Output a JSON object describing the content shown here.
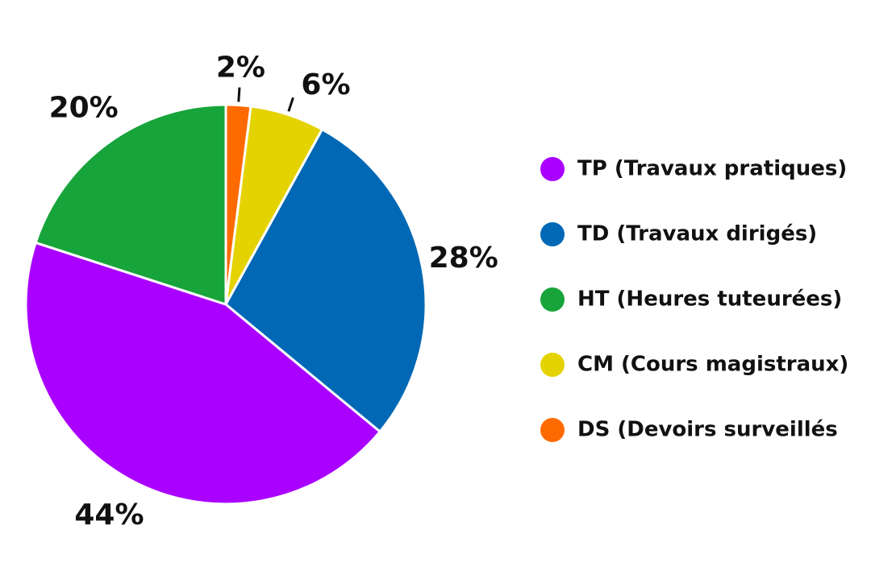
{
  "chart_data": {
    "type": "pie",
    "categories": [
      "DS (Devoirs surveillés",
      "CM (Cours magistraux)",
      "TD (Travaux dirigés)",
      "TP (Travaux pratiques)",
      "HT (Heures tuteurées)"
    ],
    "values": [
      2,
      6,
      28,
      44,
      20
    ],
    "value_labels": [
      "2%",
      "6%",
      "28%",
      "44%",
      "20%"
    ],
    "colors": [
      "#ff6a00",
      "#e4d300",
      "#0068b5",
      "#aa00ff",
      "#17a43a"
    ]
  }
}
